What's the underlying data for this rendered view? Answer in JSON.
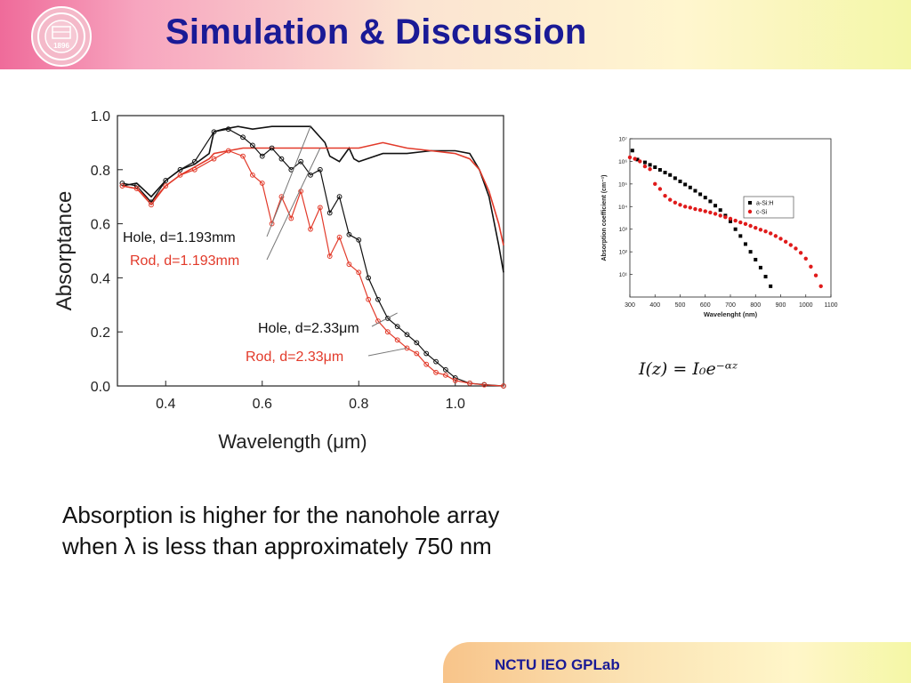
{
  "slide": {
    "title": "Simulation & Discussion",
    "body_line_1": "Absorption is higher for the nanohole array",
    "body_line_2": "when λ is less than approximately 750 nm",
    "equation": "I(z) = I₀e⁻ᵅᶻ",
    "footer": "NCTU IEO GPLab",
    "colors": {
      "title": "#1a1a96",
      "footer_text": "#1a1a96",
      "header_pink": "#ef6b9a"
    },
    "logo": {
      "icon": "university-seal-icon",
      "text": "1896"
    }
  },
  "chart_data": [
    {
      "type": "line",
      "xlabel": "Wavelength (μm)",
      "ylabel": "Absorptance",
      "xlim": [
        0.3,
        1.1
      ],
      "ylim": [
        0.0,
        1.0
      ],
      "xticks": [
        "0.4",
        "0.6",
        "0.8",
        "1.0"
      ],
      "yticks": [
        "0.0",
        "0.2",
        "0.4",
        "0.6",
        "0.8",
        "1.0"
      ],
      "grid": false,
      "annotations": [
        "Hole, d=1.193mm",
        "Rod, d=1.193mm",
        "Hole, d=2.33μm",
        "Rod, d=2.33μm"
      ],
      "series": [
        {
          "name": "Hole, d=1.193mm",
          "color": "#111111",
          "style": "line",
          "x": [
            0.31,
            0.34,
            0.37,
            0.4,
            0.43,
            0.46,
            0.49,
            0.5,
            0.52,
            0.55,
            0.58,
            0.62,
            0.66,
            0.7,
            0.73,
            0.74,
            0.76,
            0.78,
            0.79,
            0.8,
            0.85,
            0.9,
            0.95,
            1.0,
            1.03,
            1.05,
            1.07,
            1.09,
            1.1
          ],
          "y": [
            0.74,
            0.75,
            0.7,
            0.76,
            0.8,
            0.82,
            0.86,
            0.94,
            0.95,
            0.96,
            0.95,
            0.96,
            0.96,
            0.96,
            0.9,
            0.85,
            0.83,
            0.88,
            0.84,
            0.83,
            0.86,
            0.86,
            0.87,
            0.87,
            0.86,
            0.8,
            0.7,
            0.52,
            0.42
          ]
        },
        {
          "name": "Rod, d=1.193mm",
          "color": "#e23a2a",
          "style": "line",
          "x": [
            0.31,
            0.34,
            0.37,
            0.4,
            0.43,
            0.46,
            0.49,
            0.5,
            0.53,
            0.56,
            0.6,
            0.65,
            0.7,
            0.75,
            0.8,
            0.85,
            0.9,
            0.95,
            1.0,
            1.03,
            1.05,
            1.07,
            1.09,
            1.1
          ],
          "y": [
            0.74,
            0.73,
            0.68,
            0.74,
            0.78,
            0.81,
            0.84,
            0.86,
            0.87,
            0.88,
            0.88,
            0.88,
            0.88,
            0.88,
            0.88,
            0.9,
            0.88,
            0.87,
            0.86,
            0.84,
            0.8,
            0.72,
            0.6,
            0.52
          ]
        },
        {
          "name": "Hole, d=2.33μm",
          "color": "#111111",
          "style": "markers",
          "x": [
            0.31,
            0.34,
            0.37,
            0.4,
            0.43,
            0.46,
            0.5,
            0.53,
            0.56,
            0.58,
            0.6,
            0.62,
            0.64,
            0.66,
            0.68,
            0.7,
            0.72,
            0.74,
            0.76,
            0.78,
            0.8,
            0.82,
            0.84,
            0.86,
            0.88,
            0.9,
            0.92,
            0.94,
            0.96,
            0.98,
            1.0,
            1.03,
            1.06,
            1.1
          ],
          "y": [
            0.75,
            0.74,
            0.68,
            0.76,
            0.8,
            0.83,
            0.94,
            0.95,
            0.92,
            0.89,
            0.85,
            0.88,
            0.84,
            0.8,
            0.83,
            0.78,
            0.8,
            0.64,
            0.7,
            0.56,
            0.54,
            0.4,
            0.32,
            0.25,
            0.22,
            0.19,
            0.16,
            0.12,
            0.09,
            0.06,
            0.03,
            0.01,
            0.005,
            0.0
          ]
        },
        {
          "name": "Rod, d=2.33μm",
          "color": "#e23a2a",
          "style": "markers",
          "x": [
            0.31,
            0.34,
            0.37,
            0.4,
            0.43,
            0.46,
            0.5,
            0.53,
            0.56,
            0.58,
            0.6,
            0.62,
            0.64,
            0.66,
            0.68,
            0.7,
            0.72,
            0.74,
            0.76,
            0.78,
            0.8,
            0.82,
            0.84,
            0.86,
            0.88,
            0.9,
            0.92,
            0.94,
            0.96,
            0.98,
            1.0,
            1.03,
            1.06,
            1.1
          ],
          "y": [
            0.74,
            0.73,
            0.67,
            0.74,
            0.78,
            0.8,
            0.84,
            0.87,
            0.85,
            0.78,
            0.75,
            0.6,
            0.7,
            0.62,
            0.72,
            0.58,
            0.66,
            0.48,
            0.55,
            0.45,
            0.42,
            0.32,
            0.24,
            0.2,
            0.17,
            0.14,
            0.12,
            0.08,
            0.05,
            0.04,
            0.02,
            0.01,
            0.004,
            0.0
          ]
        }
      ]
    },
    {
      "type": "scatter",
      "xlabel": "Wavelenght (nm)",
      "ylabel": "Absorption coefficient (cm⁻¹)",
      "xlim": [
        300,
        1100
      ],
      "ylim": [
        1,
        10000000
      ],
      "yscale": "log",
      "xticks": [
        "300",
        "400",
        "500",
        "600",
        "700",
        "800",
        "900",
        "1000",
        "1100"
      ],
      "yticks": [
        "10¹",
        "10²",
        "10³",
        "10⁴",
        "10⁵",
        "10⁶",
        "10⁷"
      ],
      "grid": false,
      "legend": "right-center",
      "series": [
        {
          "name": "a-Si:H",
          "color": "#000000",
          "x": [
            310,
            330,
            360,
            380,
            400,
            420,
            440,
            460,
            480,
            500,
            520,
            540,
            560,
            580,
            600,
            620,
            640,
            660,
            680,
            700,
            720,
            740,
            760,
            780,
            800,
            820,
            840,
            860
          ],
          "y": [
            3000000,
            1200000,
            900000,
            700000,
            550000,
            420000,
            320000,
            250000,
            180000,
            130000,
            95000,
            70000,
            50000,
            35000,
            25000,
            17000,
            11000,
            7000,
            4000,
            2200,
            1000,
            500,
            220,
            100,
            45,
            20,
            8,
            3
          ]
        },
        {
          "name": "c-Si",
          "color": "#e01b1b",
          "x": [
            300,
            320,
            340,
            360,
            380,
            400,
            420,
            440,
            460,
            480,
            500,
            520,
            540,
            560,
            580,
            600,
            620,
            640,
            660,
            680,
            700,
            720,
            740,
            760,
            780,
            800,
            820,
            840,
            860,
            880,
            900,
            920,
            940,
            960,
            980,
            1000,
            1020,
            1040,
            1060
          ],
          "y": [
            1500000,
            1300000,
            1000000,
            600000,
            450000,
            100000,
            60000,
            30000,
            20000,
            15000,
            12000,
            10000,
            9000,
            7800,
            7000,
            6200,
            5500,
            4800,
            4000,
            3400,
            2900,
            2400,
            2000,
            1700,
            1400,
            1150,
            950,
            800,
            650,
            500,
            380,
            280,
            200,
            140,
            90,
            50,
            22,
            9,
            3
          ]
        }
      ]
    }
  ]
}
